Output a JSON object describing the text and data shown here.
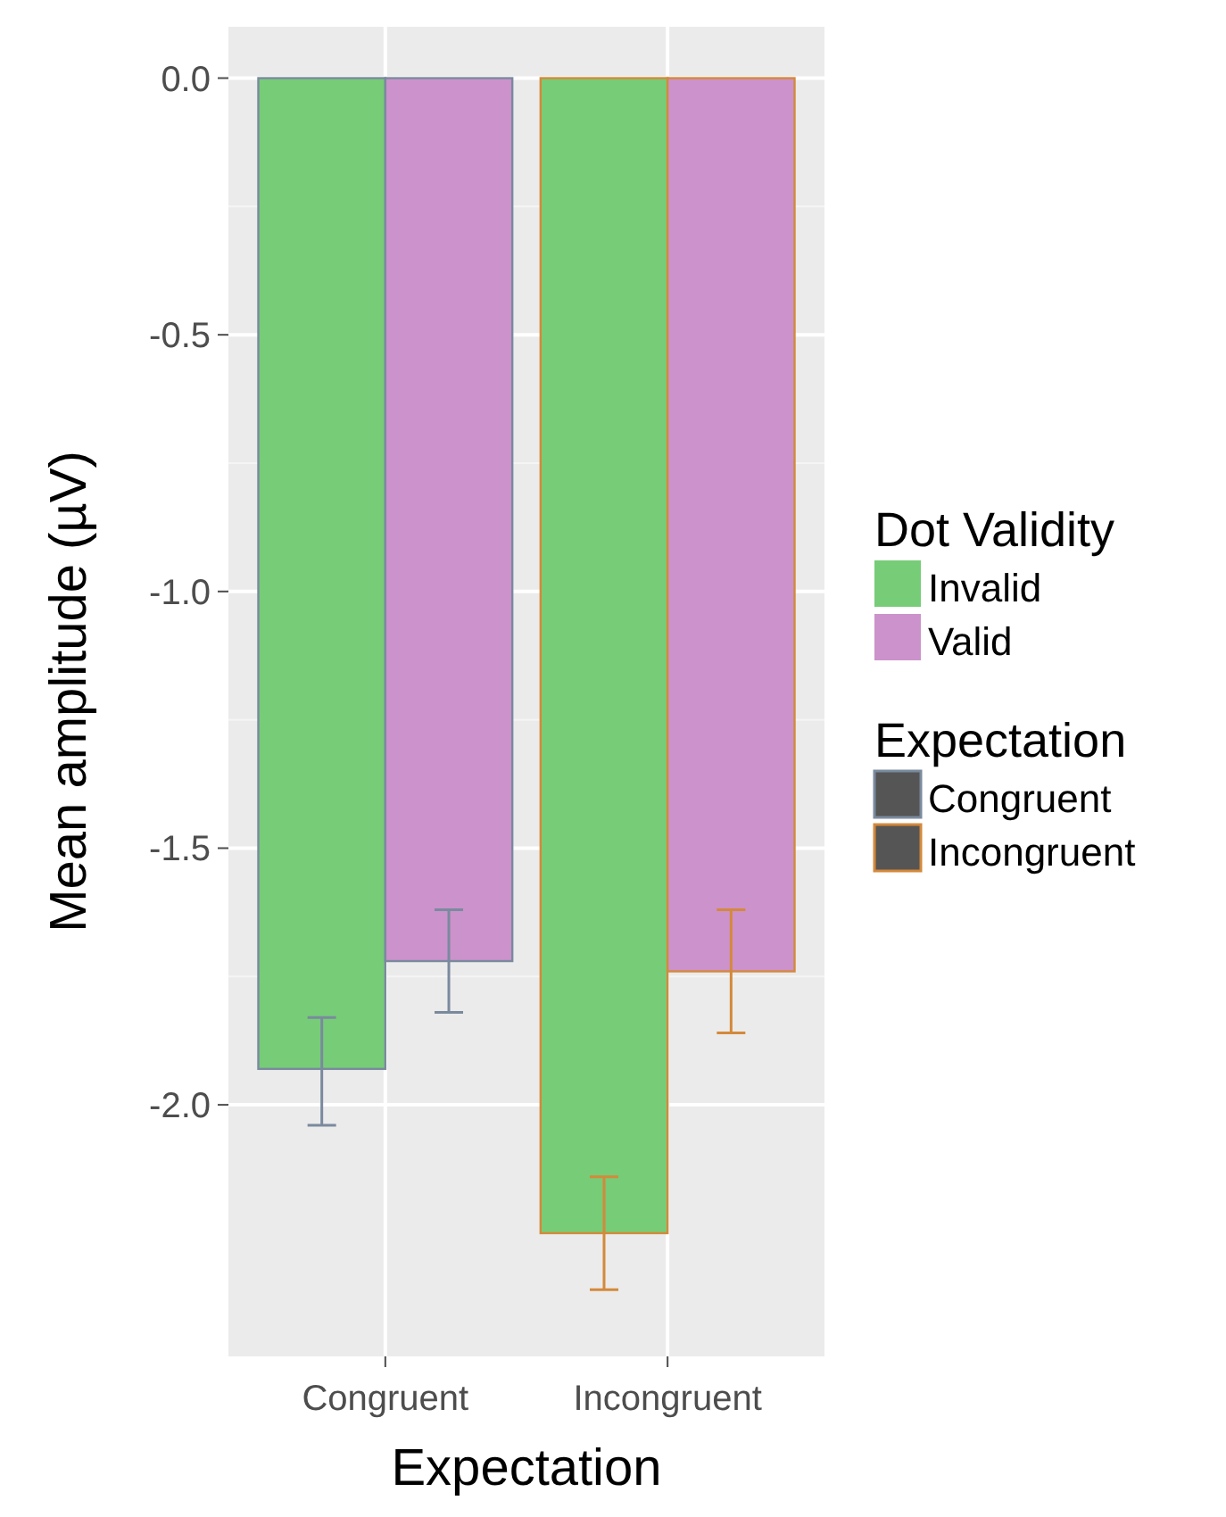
{
  "chart_data": {
    "type": "bar",
    "xlabel": "Expectation",
    "ylabel": "Mean amplitude (µV)",
    "categories": [
      "Congruent",
      "Incongruent"
    ],
    "series": [
      {
        "name": "Invalid",
        "color": "#77cc77",
        "values": [
          -1.93,
          -2.25
        ],
        "errors": [
          [
            -2.04,
            -1.83
          ],
          [
            -2.36,
            -2.14
          ]
        ]
      },
      {
        "name": "Valid",
        "color": "#cc92cb",
        "values": [
          -1.72,
          -1.74
        ],
        "errors": [
          [
            -1.82,
            -1.62
          ],
          [
            -1.86,
            -1.62
          ]
        ]
      }
    ],
    "ylim": [
      -2.49,
      0.1
    ],
    "yticks": [
      {
        "value": 0,
        "label": "0.0"
      },
      -0.5,
      {
        "value": -1,
        "label": "-1.0"
      },
      -1.5,
      {
        "value": -2,
        "label": "-2.0"
      }
    ],
    "grid": true,
    "legend": "right",
    "legend_title": "Dot Validity"
  }
}
